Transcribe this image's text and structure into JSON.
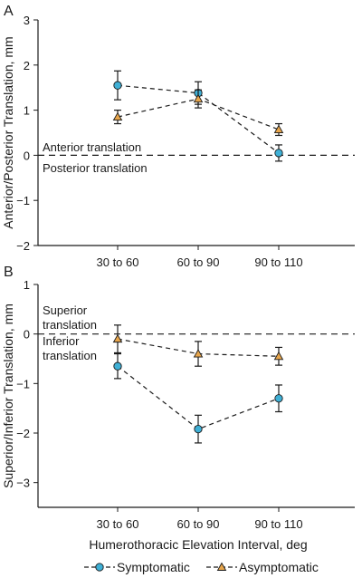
{
  "legend": {
    "symptomatic_label": "Symptomatic",
    "asymptomatic_label": "Asymptomatic"
  },
  "colors": {
    "symptomatic": "#3fb0d6",
    "asymptomatic": "#e8a64c",
    "axis": "#1a1a1a"
  },
  "chart_data": [
    {
      "type": "line",
      "panel_label": "A",
      "title": "",
      "xlabel": "",
      "ylabel": "Anterior/Posterior Translation, mm",
      "categories": [
        "30 to 60",
        "60 to 90",
        "90 to 110"
      ],
      "ylim": [
        -2,
        3
      ],
      "yticks": [
        -2,
        -1,
        0,
        1,
        2,
        3
      ],
      "ytick_labels": [
        "−2",
        "−1",
        "0",
        "1",
        "2",
        "3"
      ],
      "grid": false,
      "zero_line": true,
      "annotations": [
        "Anterior translation",
        "Posterior translation"
      ],
      "series": [
        {
          "name": "Symptomatic",
          "marker": "circle",
          "values": [
            1.55,
            1.38,
            0.05
          ],
          "error": [
            0.32,
            0.25,
            0.18
          ]
        },
        {
          "name": "Asymptomatic",
          "marker": "triangle",
          "values": [
            0.85,
            1.25,
            0.57
          ],
          "error": [
            0.15,
            0.2,
            0.13
          ]
        }
      ]
    },
    {
      "type": "line",
      "panel_label": "B",
      "title": "",
      "xlabel": "Humerothoracic Elevation Interval, deg",
      "ylabel": "Superior/Inferior Translation, mm",
      "categories": [
        "30 to 60",
        "60 to 90",
        "90 to 110"
      ],
      "ylim": [
        -3.5,
        1
      ],
      "yticks": [
        -3,
        -2,
        -1,
        0,
        1
      ],
      "ytick_labels": [
        "−3",
        "−2",
        "−1",
        "0",
        "1"
      ],
      "grid": false,
      "zero_line": true,
      "annotations": [
        "Superior translation",
        "Inferior translation"
      ],
      "series": [
        {
          "name": "Symptomatic",
          "marker": "circle",
          "values": [
            -0.65,
            -1.92,
            -1.3
          ],
          "error": [
            0.25,
            0.28,
            0.27
          ]
        },
        {
          "name": "Asymptomatic",
          "marker": "triangle",
          "values": [
            -0.1,
            -0.4,
            -0.45
          ],
          "error": [
            0.28,
            0.25,
            0.18
          ]
        }
      ]
    }
  ]
}
